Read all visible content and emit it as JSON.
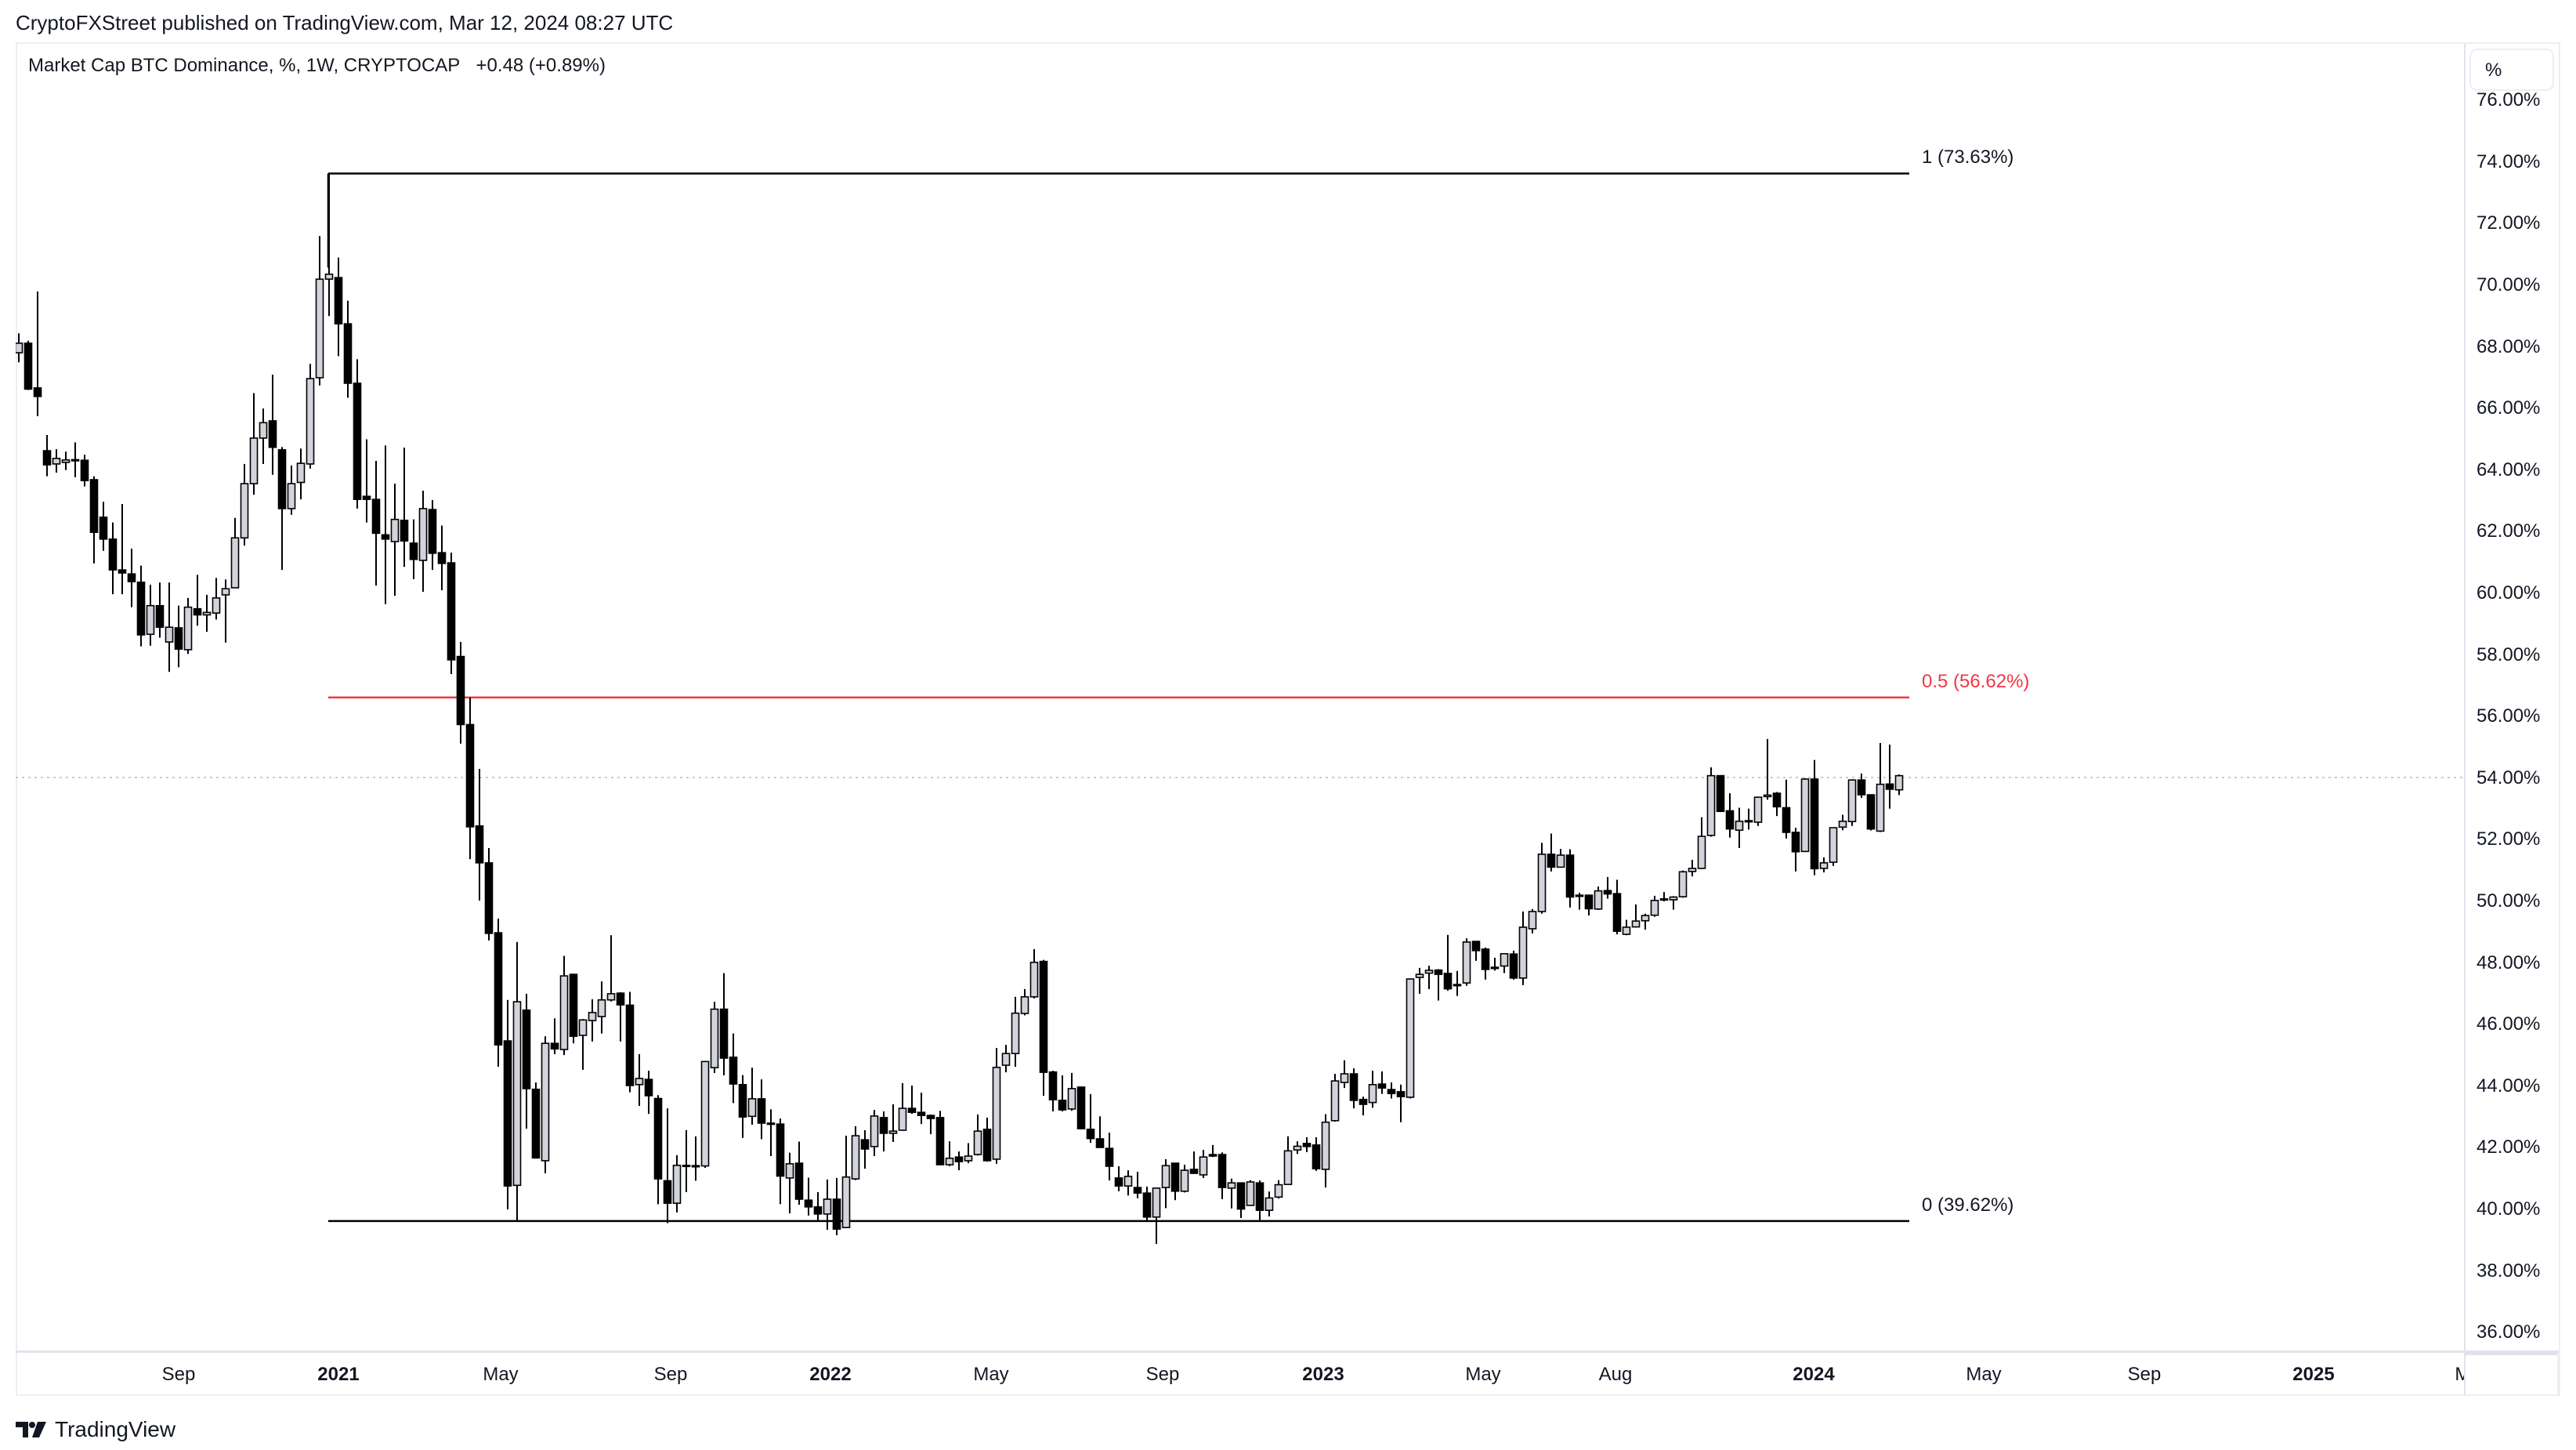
{
  "header": {
    "published": "CryptoFXStreet published on TradingView.com, Mar 12, 2024 08:27 UTC"
  },
  "legend": {
    "symbol": "Market Cap BTC Dominance, %, 1W, CRYPTOCAP",
    "change": "+0.48 (+0.89%)"
  },
  "price_axis": {
    "unit_button": "%",
    "ticks": [
      {
        "label": "76.00%",
        "value": 76
      },
      {
        "label": "74.00%",
        "value": 74
      },
      {
        "label": "72.00%",
        "value": 72
      },
      {
        "label": "70.00%",
        "value": 70
      },
      {
        "label": "68.00%",
        "value": 68
      },
      {
        "label": "66.00%",
        "value": 66
      },
      {
        "label": "64.00%",
        "value": 64
      },
      {
        "label": "62.00%",
        "value": 62
      },
      {
        "label": "60.00%",
        "value": 60
      },
      {
        "label": "58.00%",
        "value": 58
      },
      {
        "label": "56.00%",
        "value": 56
      },
      {
        "label": "54.00%",
        "value": 54
      },
      {
        "label": "52.00%",
        "value": 52
      },
      {
        "label": "50.00%",
        "value": 50
      },
      {
        "label": "48.00%",
        "value": 48
      },
      {
        "label": "46.00%",
        "value": 46
      },
      {
        "label": "44.00%",
        "value": 44
      },
      {
        "label": "42.00%",
        "value": 42
      },
      {
        "label": "40.00%",
        "value": 40
      },
      {
        "label": "38.00%",
        "value": 38
      },
      {
        "label": "36.00%",
        "value": 36
      }
    ]
  },
  "time_axis": {
    "ticks": [
      {
        "label": "Sep",
        "x": 228,
        "year": false
      },
      {
        "label": "2021",
        "x": 432,
        "year": true
      },
      {
        "label": "May",
        "x": 639,
        "year": false
      },
      {
        "label": "Sep",
        "x": 856,
        "year": false
      },
      {
        "label": "2022",
        "x": 1060,
        "year": true
      },
      {
        "label": "May",
        "x": 1265,
        "year": false
      },
      {
        "label": "Sep",
        "x": 1484,
        "year": false
      },
      {
        "label": "2023",
        "x": 1689,
        "year": true
      },
      {
        "label": "May",
        "x": 1893,
        "year": false
      },
      {
        "label": "Aug",
        "x": 2062,
        "year": false
      },
      {
        "label": "2024",
        "x": 2315,
        "year": true
      },
      {
        "label": "May",
        "x": 2532,
        "year": false
      },
      {
        "label": "Sep",
        "x": 2737,
        "year": false
      },
      {
        "label": "2025",
        "x": 2953,
        "year": true
      },
      {
        "label": "Ma",
        "x": 3150,
        "year": false
      }
    ]
  },
  "fibonacci": {
    "levels": [
      {
        "ratio": "1",
        "value": 73.63,
        "label": "1 (73.63%)",
        "color": "#000000"
      },
      {
        "ratio": "0.5",
        "value": 56.62,
        "label": "0.5 (56.62%)",
        "color": "#f23645"
      },
      {
        "ratio": "0",
        "value": 39.62,
        "label": "0 (39.62%)",
        "color": "#000000"
      }
    ],
    "start_candle_index": 33,
    "end_x": 2437
  },
  "current_price": 54.02,
  "branding": {
    "logo": "tradingview-logo",
    "name": "TradingView"
  },
  "colors": {
    "up_fill": "#d1d4dc",
    "down_fill": "#000000",
    "border": "#000000",
    "fib_mid": "#f23645",
    "price_line": "#c8cbd3"
  },
  "chart_data": {
    "type": "candlestick",
    "title": "Market Cap BTC Dominance, %, 1W, CRYPTOCAP",
    "ylabel": "%",
    "ylim": [
      35.3,
      77.7
    ],
    "timeframe": "1W",
    "x_range": "mid-2020 to Mar 2024",
    "grid": false,
    "annotations": [
      "Fib retracement 1 (73.63%)",
      "Fib retracement 0.5 (56.62%)",
      "Fib retracement 0 (39.62%)"
    ],
    "candles_ohlc": [
      [
        67.81,
        68.44,
        67.5,
        68.12
      ],
      [
        68.12,
        68.2,
        66.6,
        66.63
      ],
      [
        66.67,
        69.8,
        65.75,
        66.39
      ],
      [
        64.63,
        65.14,
        63.8,
        64.17
      ],
      [
        64.2,
        64.68,
        63.92,
        64.38
      ],
      [
        64.25,
        64.6,
        64.0,
        64.33
      ],
      [
        64.34,
        64.9,
        63.77,
        64.3
      ],
      [
        64.32,
        64.5,
        63.47,
        63.66
      ],
      [
        63.69,
        63.8,
        60.97,
        61.98
      ],
      [
        62.47,
        62.97,
        61.38,
        61.76
      ],
      [
        61.76,
        62.3,
        59.97,
        60.76
      ],
      [
        60.76,
        62.9,
        59.97,
        60.66
      ],
      [
        60.63,
        61.45,
        59.55,
        60.38
      ],
      [
        60.36,
        60.9,
        58.28,
        58.65
      ],
      [
        58.67,
        60.28,
        58.3,
        59.6
      ],
      [
        59.6,
        60.35,
        58.56,
        58.9
      ],
      [
        58.42,
        60.35,
        57.45,
        58.9
      ],
      [
        58.88,
        59.6,
        57.6,
        58.19
      ],
      [
        58.17,
        59.85,
        58.03,
        59.55
      ],
      [
        59.5,
        60.6,
        58.95,
        59.3
      ],
      [
        59.3,
        59.95,
        58.75,
        59.38
      ],
      [
        59.36,
        60.5,
        59.15,
        59.85
      ],
      [
        59.95,
        60.45,
        58.4,
        60.15
      ],
      [
        60.18,
        62.45,
        60.18,
        61.8
      ],
      [
        61.8,
        64.2,
        61.55,
        63.56
      ],
      [
        63.56,
        66.5,
        63.2,
        65.04
      ],
      [
        65.04,
        66.0,
        64.2,
        65.54
      ],
      [
        65.6,
        67.1,
        63.85,
        64.74
      ],
      [
        64.66,
        64.75,
        60.76,
        62.75
      ],
      [
        62.75,
        64.15,
        62.55,
        63.56
      ],
      [
        63.6,
        64.7,
        63.05,
        64.22
      ],
      [
        64.2,
        67.45,
        64.05,
        66.97
      ],
      [
        67.0,
        71.6,
        66.75,
        70.2
      ],
      [
        70.2,
        73.63,
        69.0,
        70.36
      ],
      [
        70.25,
        70.9,
        67.7,
        68.75
      ],
      [
        68.75,
        69.5,
        66.35,
        66.82
      ],
      [
        66.82,
        67.6,
        62.75,
        63.05
      ],
      [
        63.15,
        65.0,
        62.3,
        63.05
      ],
      [
        63.05,
        64.3,
        60.25,
        61.95
      ],
      [
        61.9,
        64.8,
        59.65,
        61.76
      ],
      [
        61.68,
        63.56,
        59.92,
        62.4
      ],
      [
        62.37,
        64.73,
        60.86,
        61.7
      ],
      [
        61.63,
        62.4,
        60.46,
        61.1
      ],
      [
        61.07,
        63.33,
        60.05,
        62.75
      ],
      [
        62.72,
        63.03,
        60.76,
        61.3
      ],
      [
        61.32,
        62.2,
        60.1,
        60.97
      ],
      [
        60.99,
        61.32,
        57.38,
        57.84
      ],
      [
        57.95,
        58.42,
        55.12,
        55.74
      ],
      [
        55.74,
        56.62,
        51.37,
        52.42
      ],
      [
        52.45,
        54.3,
        50.03,
        51.25
      ],
      [
        51.25,
        51.73,
        48.73,
        48.96
      ],
      [
        48.98,
        49.44,
        44.63,
        45.34
      ],
      [
        45.47,
        46.8,
        40.0,
        40.76
      ],
      [
        40.78,
        48.68,
        39.62,
        46.74
      ],
      [
        46.47,
        47.0,
        42.62,
        43.92
      ],
      [
        43.9,
        44.12,
        41.65,
        41.67
      ],
      [
        41.58,
        45.62,
        41.17,
        45.39
      ],
      [
        45.39,
        46.2,
        45.04,
        45.21
      ],
      [
        45.19,
        48.23,
        45.01,
        47.58
      ],
      [
        47.63,
        47.65,
        45.39,
        45.62
      ],
      [
        45.65,
        46.18,
        44.53,
        46.15
      ],
      [
        46.13,
        46.82,
        45.45,
        46.39
      ],
      [
        46.26,
        47.4,
        45.71,
        46.8
      ],
      [
        46.8,
        48.9,
        46.75,
        47.0
      ],
      [
        47.02,
        47.05,
        45.45,
        46.64
      ],
      [
        46.63,
        47.06,
        43.8,
        44.02
      ],
      [
        44.05,
        45.04,
        43.36,
        44.25
      ],
      [
        44.22,
        44.5,
        43.1,
        43.69
      ],
      [
        43.6,
        43.71,
        40.17,
        40.99
      ],
      [
        40.93,
        43.28,
        39.55,
        40.2
      ],
      [
        40.2,
        41.76,
        39.9,
        41.43
      ],
      [
        41.43,
        42.57,
        40.56,
        41.4
      ],
      [
        41.4,
        42.37,
        40.93,
        41.42
      ],
      [
        41.41,
        44.82,
        41.35,
        44.8
      ],
      [
        44.6,
        46.74,
        44.43,
        46.5
      ],
      [
        46.5,
        47.67,
        44.35,
        44.91
      ],
      [
        44.94,
        45.71,
        43.45,
        44.07
      ],
      [
        44.05,
        44.36,
        42.32,
        43.0
      ],
      [
        43.02,
        44.6,
        42.75,
        43.59
      ],
      [
        43.59,
        44.22,
        42.28,
        42.8
      ],
      [
        42.8,
        43.25,
        41.73,
        42.76
      ],
      [
        42.77,
        42.95,
        40.17,
        41.08
      ],
      [
        41.02,
        41.84,
        39.87,
        41.48
      ],
      [
        41.5,
        42.2,
        40.15,
        40.33
      ],
      [
        40.3,
        41.03,
        39.8,
        40.08
      ],
      [
        40.08,
        40.56,
        39.62,
        39.85
      ],
      [
        39.85,
        40.97,
        39.34,
        40.33
      ],
      [
        40.33,
        41.02,
        39.16,
        39.36
      ],
      [
        39.41,
        42.39,
        39.4,
        41.05
      ],
      [
        40.99,
        42.7,
        40.95,
        42.39
      ],
      [
        42.26,
        42.57,
        41.32,
        41.96
      ],
      [
        42.04,
        43.23,
        41.73,
        43.03
      ],
      [
        42.98,
        43.18,
        41.88,
        42.47
      ],
      [
        42.47,
        43.41,
        42.19,
        42.54
      ],
      [
        42.57,
        44.1,
        42.55,
        43.28
      ],
      [
        43.28,
        44.02,
        43.1,
        43.15
      ],
      [
        43.15,
        43.79,
        42.77,
        43.05
      ],
      [
        43.05,
        43.08,
        42.44,
        42.95
      ],
      [
        42.98,
        43.2,
        41.45,
        41.45
      ],
      [
        41.45,
        42.21,
        41.4,
        41.66
      ],
      [
        41.7,
        41.88,
        41.27,
        41.55
      ],
      [
        41.58,
        42.15,
        41.5,
        41.73
      ],
      [
        41.78,
        43.08,
        41.75,
        42.54
      ],
      [
        42.6,
        42.98,
        41.55,
        41.58
      ],
      [
        41.63,
        45.24,
        41.48,
        44.61
      ],
      [
        44.68,
        45.34,
        44.45,
        45.06
      ],
      [
        45.06,
        46.9,
        44.63,
        46.37
      ],
      [
        46.36,
        47.15,
        46.3,
        46.9
      ],
      [
        46.9,
        48.45,
        46.85,
        48.02
      ],
      [
        48.05,
        48.1,
        43.69,
        44.45
      ],
      [
        44.46,
        44.5,
        43.18,
        43.56
      ],
      [
        43.54,
        44.35,
        43.18,
        43.23
      ],
      [
        43.26,
        44.43,
        43.2,
        43.92
      ],
      [
        43.97,
        43.97,
        42.6,
        42.62
      ],
      [
        42.6,
        43.74,
        42.16,
        42.3
      ],
      [
        42.29,
        43.02,
        42.0,
        42.01
      ],
      [
        41.98,
        42.49,
        40.94,
        41.4
      ],
      [
        41.02,
        41.4,
        40.59,
        40.76
      ],
      [
        40.76,
        41.27,
        40.45,
        41.07
      ],
      [
        40.71,
        41.22,
        40.36,
        40.53
      ],
      [
        40.53,
        40.74,
        39.65,
        39.75
      ],
      [
        39.75,
        40.7,
        38.88,
        40.69
      ],
      [
        40.71,
        41.63,
        40.04,
        41.42
      ],
      [
        41.5,
        41.5,
        40.3,
        40.59
      ],
      [
        40.59,
        41.45,
        40.55,
        41.27
      ],
      [
        41.3,
        41.88,
        41.15,
        41.17
      ],
      [
        41.12,
        41.93,
        41.02,
        41.7
      ],
      [
        41.78,
        42.09,
        41.7,
        41.73
      ],
      [
        41.78,
        41.85,
        40.33,
        40.71
      ],
      [
        40.69,
        41.0,
        40.03,
        40.86
      ],
      [
        40.86,
        40.86,
        39.72,
        40.01
      ],
      [
        40.13,
        40.95,
        40.13,
        40.89
      ],
      [
        40.86,
        40.94,
        39.62,
        39.97
      ],
      [
        39.97,
        40.58,
        39.77,
        40.37
      ],
      [
        40.4,
        40.95,
        40.35,
        40.8
      ],
      [
        40.81,
        42.37,
        40.8,
        41.9
      ],
      [
        41.93,
        42.21,
        41.8,
        42.05
      ],
      [
        42.14,
        42.34,
        41.86,
        42.04
      ],
      [
        42.09,
        42.34,
        41.25,
        41.32
      ],
      [
        41.3,
        43.09,
        40.71,
        42.83
      ],
      [
        42.88,
        44.4,
        42.85,
        44.17
      ],
      [
        44.12,
        44.84,
        43.94,
        44.4
      ],
      [
        44.4,
        44.58,
        43.28,
        43.54
      ],
      [
        43.57,
        43.66,
        43.05,
        43.41
      ],
      [
        43.47,
        44.5,
        43.3,
        44.05
      ],
      [
        44.07,
        44.48,
        43.75,
        43.94
      ],
      [
        43.89,
        44.12,
        43.6,
        43.76
      ],
      [
        43.82,
        44.05,
        42.83,
        43.66
      ],
      [
        43.64,
        47.5,
        43.6,
        47.48
      ],
      [
        47.53,
        47.84,
        47.0,
        47.63
      ],
      [
        47.67,
        47.91,
        47.15,
        47.76
      ],
      [
        47.77,
        47.8,
        46.78,
        47.63
      ],
      [
        47.66,
        48.91,
        47.1,
        47.16
      ],
      [
        47.3,
        47.74,
        46.93,
        47.26
      ],
      [
        47.35,
        48.8,
        47.26,
        48.68
      ],
      [
        48.7,
        48.7,
        48.07,
        48.4
      ],
      [
        48.45,
        48.5,
        47.46,
        47.79
      ],
      [
        47.86,
        48.17,
        47.75,
        47.82
      ],
      [
        47.9,
        48.32,
        47.67,
        48.3
      ],
      [
        48.29,
        48.4,
        47.46,
        47.51
      ],
      [
        47.51,
        49.67,
        47.28,
        49.16
      ],
      [
        49.11,
        49.75,
        48.96,
        49.67
      ],
      [
        49.67,
        51.9,
        49.6,
        51.53
      ],
      [
        51.53,
        52.2,
        50.97,
        51.11
      ],
      [
        51.11,
        51.7,
        51.1,
        51.5
      ],
      [
        51.5,
        51.69,
        49.8,
        50.14
      ],
      [
        50.2,
        50.28,
        49.73,
        50.18
      ],
      [
        50.2,
        50.22,
        49.54,
        49.76
      ],
      [
        49.75,
        50.48,
        49.72,
        50.34
      ],
      [
        50.35,
        50.79,
        50.09,
        50.24
      ],
      [
        50.25,
        50.7,
        48.93,
        49.03
      ],
      [
        48.93,
        49.4,
        48.9,
        49.16
      ],
      [
        49.17,
        49.9,
        49.15,
        49.36
      ],
      [
        49.37,
        49.6,
        49.08,
        49.54
      ],
      [
        49.55,
        50.18,
        49.5,
        50.03
      ],
      [
        50.05,
        50.3,
        50.0,
        50.08
      ],
      [
        50.05,
        50.17,
        49.73,
        50.14
      ],
      [
        50.15,
        51.0,
        50.12,
        50.96
      ],
      [
        50.97,
        51.35,
        50.81,
        51.07
      ],
      [
        51.07,
        52.73,
        51.05,
        52.11
      ],
      [
        52.14,
        54.35,
        52.1,
        54.08
      ],
      [
        54.08,
        54.1,
        52.9,
        52.92
      ],
      [
        52.94,
        53.51,
        52.07,
        52.35
      ],
      [
        52.31,
        53.04,
        51.73,
        52.6
      ],
      [
        52.58,
        53.01,
        52.33,
        52.62
      ],
      [
        52.57,
        53.4,
        52.45,
        53.38
      ],
      [
        53.4,
        55.27,
        53.3,
        53.45
      ],
      [
        53.51,
        53.55,
        52.77,
        53.07
      ],
      [
        53.04,
        53.95,
        52.04,
        52.24
      ],
      [
        52.24,
        52.39,
        50.97,
        51.61
      ],
      [
        51.62,
        54.0,
        51.6,
        53.97
      ],
      [
        53.97,
        54.59,
        50.85,
        51.06
      ],
      [
        51.07,
        51.43,
        50.94,
        51.25
      ],
      [
        51.27,
        52.4,
        51.15,
        52.39
      ],
      [
        52.41,
        52.81,
        52.31,
        52.6
      ],
      [
        52.59,
        53.96,
        52.45,
        53.94
      ],
      [
        53.94,
        54.15,
        53.36,
        53.46
      ],
      [
        53.46,
        53.46,
        52.3,
        52.35
      ],
      [
        52.28,
        55.14,
        52.25,
        53.8
      ],
      [
        53.81,
        55.09,
        53.01,
        53.64
      ],
      [
        53.62,
        54.12,
        53.45,
        54.08
      ]
    ],
    "candle_order": "[open, high, low, close]",
    "first_candle_x": 24,
    "candle_spacing_px": 12
  }
}
